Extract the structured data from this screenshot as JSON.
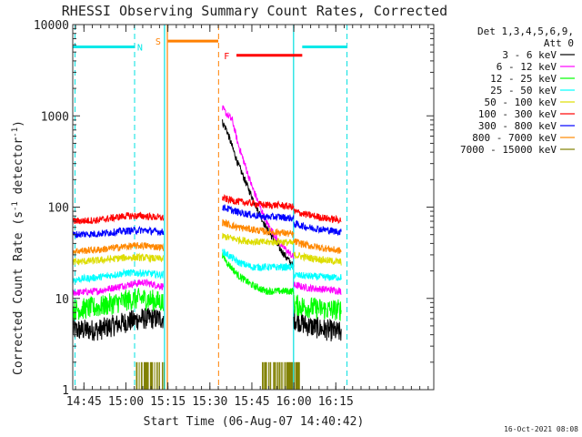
{
  "chart_data": {
    "type": "line",
    "title": "RHESSI Observing Summary Count Rates, Corrected",
    "xlabel": "Start Time (06-Aug-07 14:40:42)",
    "ylabel_main": "Corrected Count Rate (s",
    "ylabel_sup1": "-1",
    "ylabel_mid": " detector",
    "ylabel_sup2": "-1",
    "ylabel_end": ")",
    "yscale": "log",
    "ylim": [
      1,
      10000
    ],
    "xlim_minutes": [
      41,
      170
    ],
    "x_ticks": [
      {
        "min": 45,
        "label": "14:45"
      },
      {
        "min": 60,
        "label": "15:00"
      },
      {
        "min": 75,
        "label": "15:15"
      },
      {
        "min": 90,
        "label": "15:30"
      },
      {
        "min": 105,
        "label": "15:45"
      },
      {
        "min": 120,
        "label": "16:00"
      },
      {
        "min": 135,
        "label": "16:15"
      }
    ],
    "y_ticks": [
      {
        "v": 1,
        "label": "1"
      },
      {
        "v": 10,
        "label": "10"
      },
      {
        "v": 100,
        "label": "100"
      },
      {
        "v": 1000,
        "label": "1000"
      },
      {
        "v": 10000,
        "label": "10000"
      }
    ],
    "legend_header": [
      "Det 1,3,4,5,6,9,",
      "Att 0"
    ],
    "series": [
      {
        "name": "3 - 6 keV",
        "color": "#000000",
        "segments": [
          {
            "x": [
              41,
              50,
              60,
              66,
              73.5
            ],
            "y": [
              4.5,
              4.5,
              5.5,
              6.0,
              6.0
            ]
          },
          {
            "x": [
              94.5,
              96,
              100,
              105,
              110,
              115,
              120
            ],
            "y": [
              850,
              700,
              300,
              130,
              60,
              35,
              22
            ]
          },
          {
            "x": [
              120,
              125,
              132,
              137
            ],
            "y": [
              6.0,
              5.0,
              4.5,
              4.2
            ]
          }
        ]
      },
      {
        "name": "6 - 12 keV",
        "color": "#ff00ff",
        "segments": [
          {
            "x": [
              41,
              50,
              60,
              66,
              73.5
            ],
            "y": [
              11.5,
              12,
              14,
              15,
              13.5
            ]
          },
          {
            "x": [
              94.5,
              96,
              98,
              100,
              105,
              110,
              115,
              120
            ],
            "y": [
              1200,
              1050,
              900,
              500,
              170,
              70,
              40,
              28
            ]
          },
          {
            "x": [
              120,
              125,
              132,
              137
            ],
            "y": [
              14,
              13,
              12.5,
              12
            ]
          }
        ]
      },
      {
        "name": "12 - 25 keV",
        "color": "#00ff00",
        "segments": [
          {
            "x": [
              41,
              50,
              60,
              66,
              73.5
            ],
            "y": [
              7.5,
              8,
              9.5,
              10,
              9
            ]
          },
          {
            "x": [
              94.5,
              96,
              100,
              105,
              110,
              115,
              120
            ],
            "y": [
              30,
              25,
              18,
              14,
              12,
              12,
              12
            ]
          },
          {
            "x": [
              120,
              125,
              132,
              137
            ],
            "y": [
              8.5,
              8,
              7.5,
              7.5
            ]
          }
        ]
      },
      {
        "name": "25 - 50 keV",
        "color": "#00ffff",
        "segments": [
          {
            "x": [
              41,
              50,
              60,
              66,
              73.5
            ],
            "y": [
              16,
              17,
              19,
              19,
              18
            ]
          },
          {
            "x": [
              94.5,
              100,
              105,
              110,
              115,
              120
            ],
            "y": [
              33,
              25,
              22,
              22,
              22,
              22
            ]
          },
          {
            "x": [
              120,
              125,
              132,
              137
            ],
            "y": [
              18,
              17.5,
              17,
              17
            ]
          }
        ]
      },
      {
        "name": "50 - 100 keV",
        "color": "#dddd00",
        "segments": [
          {
            "x": [
              41,
              50,
              60,
              66,
              73.5
            ],
            "y": [
              25,
              26,
              28,
              28,
              27
            ]
          },
          {
            "x": [
              94.5,
              100,
              105,
              110,
              115,
              120
            ],
            "y": [
              48,
              44,
              42,
              41,
              42,
              40
            ]
          },
          {
            "x": [
              120,
              125,
              132,
              137
            ],
            "y": [
              30,
              28,
              26,
              25
            ]
          }
        ]
      },
      {
        "name": "100 - 300 keV",
        "color": "#ff0000",
        "segments": [
          {
            "x": [
              41,
              50,
              60,
              66,
              73.5
            ],
            "y": [
              70,
              72,
              80,
              80,
              76
            ]
          },
          {
            "x": [
              94.5,
              100,
              105,
              110,
              115,
              120
            ],
            "y": [
              125,
              115,
              110,
              105,
              105,
              100
            ]
          },
          {
            "x": [
              120,
              125,
              132,
              137
            ],
            "y": [
              90,
              82,
              75,
              72
            ]
          }
        ]
      },
      {
        "name": "300 - 800 keV",
        "color": "#0000ff",
        "segments": [
          {
            "x": [
              41,
              50,
              60,
              66,
              73.5
            ],
            "y": [
              50,
              51,
              55,
              56,
              53
            ]
          },
          {
            "x": [
              94.5,
              100,
              105,
              110,
              115,
              120
            ],
            "y": [
              100,
              88,
              82,
              78,
              78,
              75
            ]
          },
          {
            "x": [
              120,
              125,
              132,
              137
            ],
            "y": [
              66,
              60,
              56,
              53
            ]
          }
        ]
      },
      {
        "name": "800 - 7000 keV",
        "color": "#ff8800",
        "segments": [
          {
            "x": [
              41,
              50,
              60,
              66,
              73.5
            ],
            "y": [
              33,
              34,
              37,
              38,
              36
            ]
          },
          {
            "x": [
              94.5,
              100,
              105,
              110,
              115,
              120
            ],
            "y": [
              68,
              60,
              57,
              54,
              53,
              50
            ]
          },
          {
            "x": [
              120,
              125,
              132,
              137
            ],
            "y": [
              42,
              38,
              35,
              33
            ]
          }
        ]
      },
      {
        "name": "7000 - 15000 keV",
        "color": "#808000",
        "segments": []
      }
    ],
    "spikes_7000_15000": [
      {
        "from": 63.5,
        "to": 73.5
      },
      {
        "from": 108.5,
        "to": 122.5
      }
    ],
    "intervals": [
      {
        "label": "N",
        "color": "#00e8e8",
        "bar_from": 41,
        "bar_to": 63,
        "bar_y": 5700,
        "edges": [
          63,
          123
        ],
        "label_x": 65,
        "bar2_from": 123,
        "bar2_to": 139
      },
      {
        "label": "S",
        "color": "#ff8000",
        "bar_from": 75,
        "bar_to": 93,
        "bar_y": 6600,
        "edges": [
          75,
          93
        ],
        "label_x": 71.5
      },
      {
        "label": "F",
        "color": "#ff0000",
        "bar_from": 99.5,
        "bar_to": 123,
        "bar_y": 4600,
        "edges": [],
        "label_x": 96
      }
    ],
    "solid_cyan_lines": [
      73.8,
      119.9
    ],
    "solid_orange_lines": [
      74.8
    ],
    "dashed_orange_lines": [
      93.1
    ],
    "dashed_cyan_lines": [
      41.8,
      63.1,
      139.0
    ],
    "timestamp": "16-Oct-2021 08:08"
  }
}
